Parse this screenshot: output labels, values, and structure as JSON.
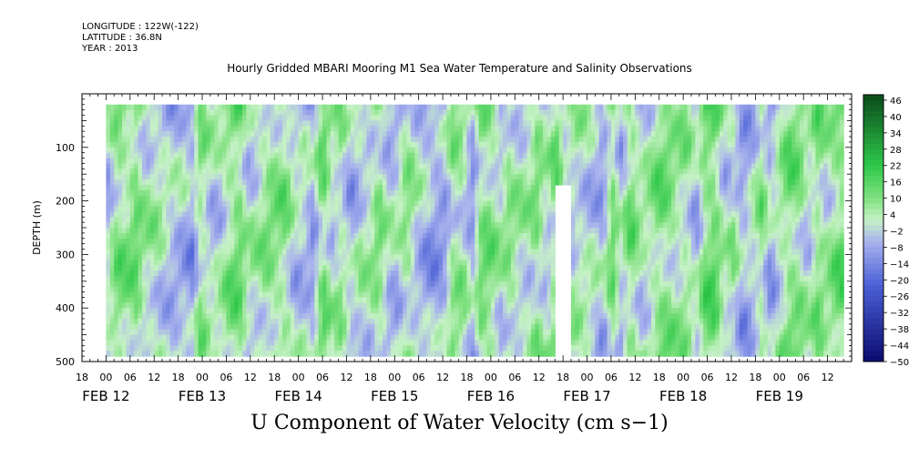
{
  "header": {
    "longitude": "LONGITUDE : 122W(-122)",
    "latitude": "LATITUDE : 36.8N",
    "year": "YEAR : 2013",
    "title": "Hourly Gridded MBARI Mooring M1 Sea Water Temperature and Salinity Observations"
  },
  "footer": {
    "title": "U Component of Water Velocity (cm s−1)"
  },
  "colors": {
    "negative_strong": "#0a0a6e",
    "negative": "#4a60d6",
    "negative_light": "#a9b3ee",
    "near_zero": "#c6f2c6",
    "positive_light": "#7ee07e",
    "positive": "#2ec84a",
    "positive_strong": "#0a4a1a"
  },
  "chart_data": {
    "type": "heatmap",
    "title": "Hourly Gridded MBARI Mooring M1 Sea Water Temperature and Salinity Observations",
    "xlabel": "",
    "ylabel": "DEPTH (m)",
    "colorbar_label": "U Component of Water Velocity (cm s−1)",
    "y_range": [
      0,
      500
    ],
    "y_inverted": true,
    "y_ticks": [
      100,
      200,
      300,
      400,
      500
    ],
    "x_range_hours": [
      "FEB 11 18:00",
      "FEB 19 18:00"
    ],
    "x_hour_ticks": [
      "18",
      "00",
      "06",
      "12",
      "18",
      "00",
      "06",
      "12",
      "18",
      "00",
      "06",
      "12",
      "18",
      "00",
      "06",
      "12",
      "18",
      "00",
      "06",
      "12",
      "18",
      "00",
      "06",
      "12",
      "18",
      "00",
      "06",
      "12",
      "18",
      "00",
      "06",
      "12"
    ],
    "x_date_labels": [
      "FEB 12",
      "FEB 13",
      "FEB 14",
      "FEB 15",
      "FEB 16",
      "FEB 17",
      "FEB 18",
      "FEB 19"
    ],
    "colorbar_levels": [
      48,
      46,
      44,
      42,
      40,
      38,
      36,
      34,
      32,
      30,
      28,
      26,
      24,
      22,
      20,
      18,
      16,
      14,
      12,
      10,
      8,
      6,
      4,
      2,
      0,
      -2,
      -4,
      -6,
      -8,
      -10,
      -12,
      -14,
      -16,
      -18,
      -20,
      -22,
      -24,
      -26,
      -28,
      -30,
      -32,
      -34,
      -36,
      -38,
      -40,
      -42,
      -44,
      -46,
      -48,
      -50
    ],
    "colorbar_labels": [
      "46",
      "40",
      "34",
      "28",
      "22",
      "16",
      "10",
      "4",
      "−2",
      "−8",
      "−14",
      "−20",
      "−26",
      "−32",
      "−38",
      "−44",
      "−50"
    ],
    "data_depth_range": [
      20,
      485
    ],
    "data_start": "FEB 12 00:00",
    "data_end": "FEB 19 16:00",
    "gap_near": "FEB 16 18:00",
    "value_range": [
      -20,
      25
    ]
  }
}
